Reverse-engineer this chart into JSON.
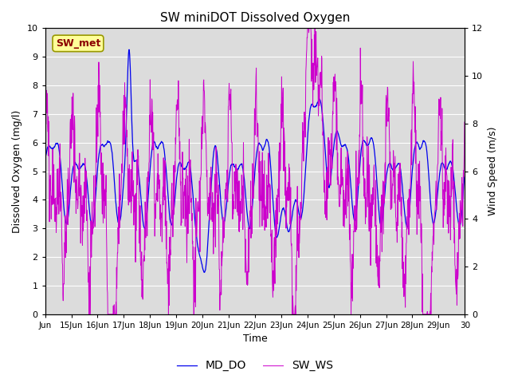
{
  "title": "SW miniDOT Dissolved Oxygen",
  "xlabel": "Time",
  "ylabel_left": "Dissolved Oxygen (mg/l)",
  "ylabel_right": "Wind Speed (m/s)",
  "annotation": "SW_met",
  "annotation_color": "#8B0000",
  "annotation_bg": "#FFFF99",
  "annotation_border": "#999900",
  "left_ylim": [
    0.0,
    10.0
  ],
  "right_ylim": [
    0,
    12
  ],
  "left_yticks": [
    0.0,
    1.0,
    2.0,
    3.0,
    4.0,
    5.0,
    6.0,
    7.0,
    8.0,
    9.0,
    10.0
  ],
  "right_yticks": [
    0,
    2,
    4,
    6,
    8,
    10,
    12
  ],
  "fig_bg_color": "#FFFFFF",
  "plot_bg_color": "#DCDCDC",
  "line_color_do": "#0000EE",
  "line_color_ws": "#CC00CC",
  "legend_labels": [
    "MD_DO",
    "SW_WS"
  ],
  "n_points": 1440
}
